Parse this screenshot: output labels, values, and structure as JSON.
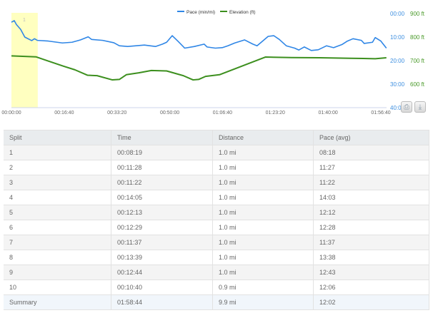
{
  "chart_data": {
    "type": "line",
    "legend_position": "top-center",
    "grid": false,
    "x_ticks": [
      "00:00:00",
      "00:16:40",
      "00:33:20",
      "00:50:00",
      "01:06:40",
      "01:23:20",
      "01:40:00",
      "01:56:40"
    ],
    "xlim": [
      "00:00:00",
      "01:56:40"
    ],
    "highlight_band": {
      "label": "1",
      "from": "00:00:00",
      "to": "00:08:19",
      "color": "#ffffc0"
    },
    "y_axes": [
      {
        "series": "Pace (min/mi)",
        "ticks": [
          "00:00",
          "10:00",
          "20:00",
          "30:00",
          "40:00"
        ],
        "ylim": [
          "00:00",
          "40:00"
        ],
        "reversed": true,
        "color": "#3d8fe0"
      },
      {
        "series": "Elevation (ft)",
        "ticks": [
          "900 ft",
          "800 ft",
          "700 ft",
          "600 ft"
        ],
        "ylim": [
          500,
          900
        ],
        "color": "#4a9a2a"
      }
    ],
    "series": [
      {
        "name": "Pace (min/mi)",
        "color": "#2f86e6",
        "x": [
          "00:00:00",
          "00:00:53",
          "00:01:35",
          "00:02:54",
          "00:04:13",
          "00:06:24",
          "00:07:17",
          "00:08:10",
          "00:11:41",
          "00:16:05",
          "00:19:09",
          "00:21:47",
          "00:24:15",
          "00:25:18",
          "00:28:49",
          "00:32:20",
          "00:34:05",
          "00:36:43",
          "00:39:21",
          "00:41:59",
          "00:45:30",
          "00:47:42",
          "00:49:01",
          "00:50:47",
          "00:52:32",
          "00:54:44",
          "00:57:48",
          "01:00:53",
          "01:01:46",
          "01:04:24",
          "01:06:35",
          "01:08:21",
          "01:10:33",
          "01:13:37",
          "01:16:15",
          "01:17:34",
          "01:19:20",
          "01:21:05",
          "01:22:51",
          "01:24:36",
          "01:26:48",
          "01:29:26",
          "01:30:45",
          "01:32:30",
          "01:34:42",
          "01:36:54",
          "01:39:32",
          "01:41:44",
          "01:44:22",
          "01:46:07",
          "01:47:53",
          "01:50:31",
          "01:51:24",
          "01:54:02",
          "01:54:54",
          "01:56:40",
          "01:58:25"
        ],
        "y": [
          "03:42",
          "03:00",
          "04:42",
          "06:42",
          "10:00",
          "11:30",
          "10:42",
          "11:24",
          "11:42",
          "12:30",
          "12:12",
          "11:12",
          "09:54",
          "11:00",
          "11:24",
          "12:24",
          "13:42",
          "14:00",
          "13:42",
          "13:24",
          "14:00",
          "13:00",
          "12:12",
          "09:24",
          "11:42",
          "14:42",
          "14:00",
          "13:00",
          "14:12",
          "14:42",
          "14:30",
          "13:42",
          "12:30",
          "11:12",
          "13:00",
          "13:42",
          "11:42",
          "09:42",
          "09:24",
          "11:00",
          "13:42",
          "14:42",
          "15:30",
          "14:12",
          "15:42",
          "15:24",
          "13:42",
          "14:30",
          "13:12",
          "11:42",
          "10:42",
          "11:24",
          "12:42",
          "12:12",
          "10:12",
          "11:42",
          "14:42"
        ]
      },
      {
        "name": "Elevation (ft)",
        "color": "#3c8f1e",
        "x": [
          "00:00:00",
          "00:07:44",
          "00:11:41",
          "00:16:31",
          "00:20:02",
          "00:23:59",
          "00:27:03",
          "00:31:53",
          "00:34:05",
          "00:36:17",
          "00:40:14",
          "00:44:11",
          "00:49:01",
          "00:54:17",
          "00:57:22",
          "00:59:07",
          "01:01:19",
          "01:05:43",
          "01:09:14",
          "01:15:22",
          "01:20:12",
          "01:28:33",
          "01:37:20",
          "01:47:00",
          "01:54:54",
          "01:58:25"
        ],
        "y": [
          720,
          716,
          698,
          676,
          661,
          638,
          636,
          618,
          620,
          640,
          648,
          658,
          656,
          636,
          618,
          620,
          633,
          640,
          658,
          690,
          715,
          713,
          712,
          710,
          708,
          712
        ]
      }
    ]
  },
  "toolbar": {
    "print_icon": "print-icon",
    "export_icon": "download-icon"
  },
  "table": {
    "headers": [
      "Split",
      "Time",
      "Distance",
      "Pace (avg)"
    ],
    "rows": [
      [
        "1",
        "00:08:19",
        "1.0 mi",
        "08:18"
      ],
      [
        "2",
        "00:11:28",
        "1.0 mi",
        "11:27"
      ],
      [
        "3",
        "00:11:22",
        "1.0 mi",
        "11:22"
      ],
      [
        "4",
        "00:14:05",
        "1.0 mi",
        "14:03"
      ],
      [
        "5",
        "00:12:13",
        "1.0 mi",
        "12:12"
      ],
      [
        "6",
        "00:12:29",
        "1.0 mi",
        "12:28"
      ],
      [
        "7",
        "00:11:37",
        "1.0 mi",
        "11:37"
      ],
      [
        "8",
        "00:13:39",
        "1.0 mi",
        "13:38"
      ],
      [
        "9",
        "00:12:44",
        "1.0 mi",
        "12:43"
      ],
      [
        "10",
        "00:10:40",
        "0.9 mi",
        "12:06"
      ]
    ],
    "summary": [
      "Summary",
      "01:58:44",
      "9.9 mi",
      "12:02"
    ]
  }
}
